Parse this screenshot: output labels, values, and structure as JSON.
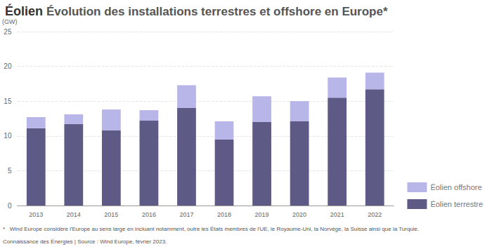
{
  "chart_data": {
    "type": "bar",
    "title": "Éolien",
    "subtitle": "Évolution des installations terrestres et offshore en Europe*",
    "y_label": "(GW)",
    "annotations": [
      "*   Wind Europe considère l'Europe au sens large en incluant notamment, outre les États membres de l'UE, le Royaume-Uni, la Norvège, la Suisse ainsi que la Turquie.",
      "Connaissance des Énergies | Source : Wind Europe, février 2023."
    ],
    "categories": [
      "2013",
      "2014",
      "2015",
      "2016",
      "2017",
      "2018",
      "2019",
      "2020",
      "2021",
      "2022"
    ],
    "series": [
      {
        "name": "Éolien terrestre",
        "color": "#5e5a86",
        "values": [
          11.1,
          11.7,
          10.8,
          12.2,
          14.0,
          9.5,
          12.0,
          12.1,
          15.5,
          16.7
        ]
      },
      {
        "name": "Éolien offshore",
        "color": "#b8b5e8",
        "values": [
          1.6,
          1.4,
          3.0,
          1.5,
          3.3,
          2.6,
          3.7,
          2.9,
          2.9,
          2.4
        ]
      }
    ],
    "stacked": true,
    "ylim": [
      0,
      25
    ],
    "yticks": [
      0,
      5,
      10,
      15,
      20,
      25
    ],
    "grid": true,
    "legend": "right"
  }
}
